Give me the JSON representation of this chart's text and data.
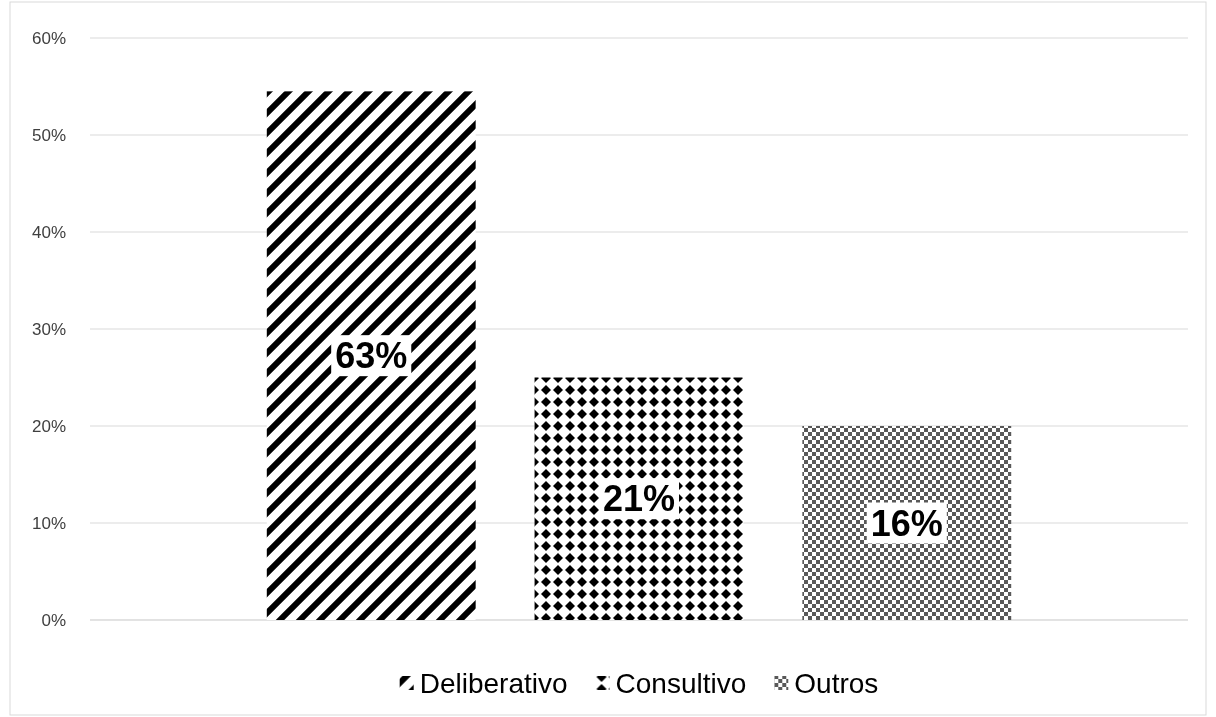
{
  "chart_data": {
    "type": "bar",
    "categories": [
      null
    ],
    "series": [
      {
        "name": "Deliberativo",
        "color": "#000000",
        "values": [
          54.5
        ]
      },
      {
        "name": "Consultivo",
        "color": "#000000",
        "values": [
          25
        ]
      },
      {
        "name": "Outros",
        "color": "#595959",
        "values": [
          20
        ]
      }
    ],
    "annotations": [
      "63%",
      "21%",
      "16%"
    ],
    "ylim": [
      0,
      60
    ],
    "yticks": [
      {
        "value": 0,
        "label": "0%"
      },
      {
        "value": 10,
        "label": "10%"
      },
      {
        "value": 20,
        "label": "20%"
      },
      {
        "value": 30,
        "label": "30%"
      },
      {
        "value": 40,
        "label": "40%"
      },
      {
        "value": 50,
        "label": "50%"
      },
      {
        "value": 60,
        "label": "60%"
      }
    ],
    "grid": "y",
    "legend": "bottom"
  }
}
